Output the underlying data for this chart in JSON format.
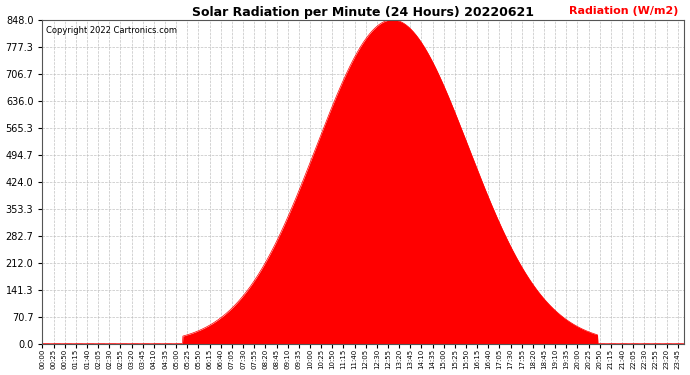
{
  "title": "Solar Radiation per Minute (24 Hours) 20220621",
  "ylabel_text": "Radiation (W/m2)",
  "copyright": "Copyright 2022 Cartronics.com",
  "fill_color": "#FF0000",
  "line_color": "#CC0000",
  "background_color": "#FFFFFF",
  "grid_color": "#BBBBBB",
  "dashed_baseline_color": "#FF0000",
  "yticks": [
    0.0,
    70.7,
    141.3,
    212.0,
    282.7,
    353.3,
    424.0,
    494.7,
    565.3,
    636.0,
    706.7,
    777.3,
    848.0
  ],
  "ymax": 848.0,
  "peak_hour": 13.08,
  "peak_value": 848.0,
  "sunrise_hour": 5.25,
  "sunset_hour": 20.75,
  "sigma": 2.85,
  "total_minutes": 1440,
  "x_tick_interval": 25
}
